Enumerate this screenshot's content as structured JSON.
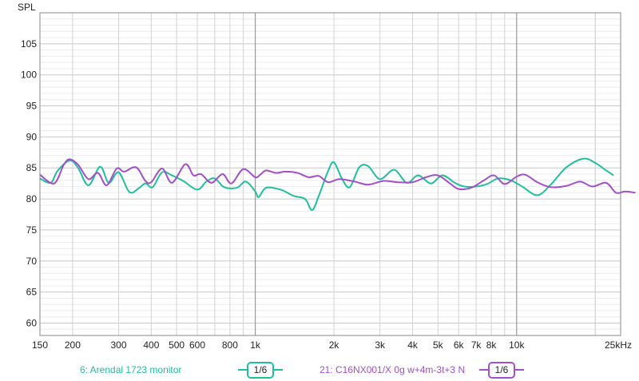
{
  "chart_data": {
    "type": "line",
    "ylabel": "SPL",
    "x_scale": "log",
    "xlim": [
      150,
      25000
    ],
    "ylim": [
      58,
      110
    ],
    "grid": true,
    "y_ticks": [
      60,
      65,
      70,
      75,
      80,
      85,
      90,
      95,
      100,
      105
    ],
    "y_tick_labels": [
      "60",
      "65",
      "70",
      "75",
      "80",
      "85",
      "90",
      "95",
      "100",
      "105"
    ],
    "x_ticks": [
      150,
      200,
      300,
      400,
      500,
      600,
      800,
      1000,
      2000,
      3000,
      4000,
      5000,
      6000,
      7000,
      8000,
      10000,
      25000
    ],
    "x_tick_labels": [
      "150",
      "200",
      "300",
      "400",
      "500",
      "600",
      "800",
      "1k",
      "2k",
      "3k",
      "4k",
      "5k",
      "6k",
      "7k",
      "8k",
      "10k",
      "25kHz"
    ],
    "series": [
      {
        "name": "6: Arendal 1723 monitor",
        "smoothing_badge": "1/6",
        "color": "#1fbf9f",
        "points": [
          [
            150,
            83.3
          ],
          [
            165,
            82.6
          ],
          [
            175,
            84.5
          ],
          [
            195,
            86.2
          ],
          [
            210,
            85.0
          ],
          [
            230,
            82.2
          ],
          [
            255,
            85.2
          ],
          [
            275,
            82.6
          ],
          [
            300,
            84.3
          ],
          [
            330,
            81.1
          ],
          [
            360,
            81.8
          ],
          [
            380,
            82.5
          ],
          [
            405,
            81.9
          ],
          [
            440,
            84.3
          ],
          [
            480,
            83.8
          ],
          [
            530,
            82.9
          ],
          [
            600,
            81.5
          ],
          [
            650,
            82.8
          ],
          [
            700,
            83.3
          ],
          [
            760,
            81.9
          ],
          [
            850,
            81.8
          ],
          [
            920,
            82.8
          ],
          [
            1000,
            81.2
          ],
          [
            1030,
            80.3
          ],
          [
            1100,
            81.8
          ],
          [
            1250,
            81.5
          ],
          [
            1400,
            80.5
          ],
          [
            1550,
            80.0
          ],
          [
            1650,
            78.2
          ],
          [
            1750,
            80.5
          ],
          [
            1900,
            84.5
          ],
          [
            2000,
            85.9
          ],
          [
            2150,
            83.2
          ],
          [
            2300,
            81.9
          ],
          [
            2500,
            85.1
          ],
          [
            2700,
            85.3
          ],
          [
            3000,
            83.2
          ],
          [
            3400,
            84.7
          ],
          [
            3800,
            82.6
          ],
          [
            4200,
            83.8
          ],
          [
            4700,
            82.5
          ],
          [
            5200,
            83.8
          ],
          [
            5800,
            82.6
          ],
          [
            6300,
            82.0
          ],
          [
            7000,
            82.0
          ],
          [
            7700,
            82.4
          ],
          [
            8500,
            83.3
          ],
          [
            9500,
            83.0
          ],
          [
            10500,
            82.0
          ],
          [
            12000,
            80.6
          ],
          [
            13500,
            82.3
          ],
          [
            15500,
            85.1
          ],
          [
            18000,
            86.5
          ],
          [
            20000,
            85.8
          ],
          [
            22000,
            84.6
          ],
          [
            23500,
            83.8
          ]
        ]
      },
      {
        "name": "21: C16NX001/X 0g w+4m-3t+3 N",
        "smoothing_badge": "1/6",
        "color": "#a24fc8",
        "points": [
          [
            150,
            83.9
          ],
          [
            170,
            82.5
          ],
          [
            185,
            85.5
          ],
          [
            195,
            86.4
          ],
          [
            210,
            85.5
          ],
          [
            230,
            83.2
          ],
          [
            250,
            84.2
          ],
          [
            270,
            82.2
          ],
          [
            295,
            84.9
          ],
          [
            315,
            84.4
          ],
          [
            350,
            85.1
          ],
          [
            380,
            82.9
          ],
          [
            400,
            82.7
          ],
          [
            440,
            84.9
          ],
          [
            480,
            82.6
          ],
          [
            540,
            85.6
          ],
          [
            580,
            83.8
          ],
          [
            620,
            84.0
          ],
          [
            680,
            82.6
          ],
          [
            750,
            84.0
          ],
          [
            810,
            82.5
          ],
          [
            900,
            84.8
          ],
          [
            1000,
            83.5
          ],
          [
            1050,
            84.0
          ],
          [
            1100,
            84.6
          ],
          [
            1200,
            84.2
          ],
          [
            1300,
            84.4
          ],
          [
            1450,
            84.2
          ],
          [
            1600,
            83.5
          ],
          [
            1750,
            83.7
          ],
          [
            1900,
            82.7
          ],
          [
            2100,
            83.2
          ],
          [
            2400,
            82.8
          ],
          [
            2700,
            82.3
          ],
          [
            3100,
            82.9
          ],
          [
            3500,
            82.7
          ],
          [
            4000,
            82.7
          ],
          [
            4500,
            83.5
          ],
          [
            5000,
            83.8
          ],
          [
            5600,
            82.4
          ],
          [
            6000,
            81.6
          ],
          [
            6700,
            81.8
          ],
          [
            7500,
            83.0
          ],
          [
            8200,
            83.8
          ],
          [
            9000,
            82.4
          ],
          [
            10000,
            83.6
          ],
          [
            10800,
            83.9
          ],
          [
            12000,
            82.7
          ],
          [
            13500,
            81.9
          ],
          [
            15500,
            82.1
          ],
          [
            17500,
            82.8
          ],
          [
            19500,
            82.0
          ],
          [
            22000,
            82.6
          ],
          [
            24000,
            81.0
          ],
          [
            26000,
            81.2
          ],
          [
            28500,
            81.0
          ]
        ]
      }
    ]
  }
}
